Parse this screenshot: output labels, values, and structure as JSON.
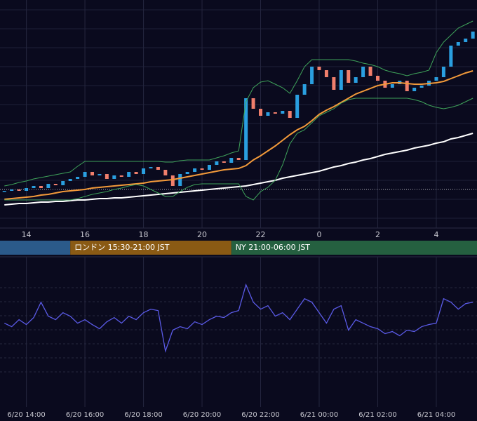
{
  "chart_data": {
    "type": "candlestick",
    "xlim": [
      13.1,
      29.39
    ],
    "xticks": [
      14,
      16,
      18,
      20,
      22,
      {
        "value": 24,
        "label": "0"
      },
      {
        "value": 26,
        "label": "2"
      },
      {
        "value": 28,
        "label": "4"
      }
    ],
    "bottom_xticks": [
      {
        "value": 14,
        "label": "6/20 14:00"
      },
      {
        "value": 16,
        "label": "6/20 16:00"
      },
      {
        "value": 18,
        "label": "6/20 18:00"
      },
      {
        "value": 20,
        "label": "6/20 20:00"
      },
      {
        "value": 22,
        "label": "6/20 22:00"
      },
      {
        "value": 24,
        "label": "6/21 00:00"
      },
      {
        "value": 26,
        "label": "6/21 02:00"
      },
      {
        "value": 28,
        "label": "6/21 04:00"
      }
    ],
    "ylim": [
      0,
      325
    ],
    "osc_ylim": [
      0,
      215
    ],
    "grid": true,
    "up_color": "#2a9fe0",
    "down_color": "#f07f6c",
    "price_line": 55,
    "x": [
      13.25,
      13.5,
      13.75,
      14,
      14.25,
      14.5,
      14.75,
      15,
      15.25,
      15.5,
      15.75,
      16,
      16.25,
      16.5,
      16.75,
      17,
      17.25,
      17.5,
      17.75,
      18,
      18.25,
      18.5,
      18.75,
      19,
      19.25,
      19.5,
      19.75,
      20,
      20.25,
      20.5,
      20.75,
      21,
      21.25,
      21.5,
      21.75,
      22,
      22.25,
      22.5,
      22.75,
      23,
      23.25,
      23.5,
      23.75,
      24,
      24.25,
      24.5,
      24.75,
      25,
      25.25,
      25.5,
      25.75,
      26,
      26.25,
      26.5,
      26.75,
      27,
      27.25,
      27.5,
      27.75,
      28,
      28.25,
      28.5,
      28.75,
      29,
      29.25
    ],
    "close": [
      53,
      55,
      53,
      57,
      60,
      57,
      63,
      61,
      67,
      70,
      73,
      80,
      75,
      77,
      70,
      75,
      73,
      80,
      77,
      85,
      87,
      83,
      75,
      60,
      77,
      80,
      85,
      83,
      90,
      95,
      93,
      100,
      97,
      185,
      170,
      160,
      165,
      163,
      167,
      157,
      190,
      205,
      230,
      225,
      215,
      197,
      225,
      207,
      215,
      230,
      217,
      210,
      200,
      205,
      210,
      195,
      200,
      203,
      210,
      215,
      230,
      260,
      265,
      270,
      280
    ],
    "lines": [
      {
        "color": "#f39a3a",
        "width": 2,
        "values": [
          41,
          42,
          43,
          44,
          45,
          47,
          48,
          50,
          52,
          53,
          54,
          55,
          57,
          58,
          59,
          60,
          61,
          62,
          63,
          64,
          66,
          67,
          68,
          69,
          71,
          73,
          75,
          77,
          79,
          81,
          83,
          84,
          85,
          89,
          97,
          103,
          110,
          117,
          125,
          133,
          140,
          145,
          153,
          162,
          168,
          173,
          179,
          185,
          191,
          195,
          199,
          203,
          205,
          207,
          207,
          206,
          205,
          205,
          206,
          207,
          209,
          213,
          217,
          221,
          224
        ]
      },
      {
        "color": "#ffffff",
        "width": 2,
        "values": [
          33,
          34,
          35,
          35,
          36,
          37,
          37,
          38,
          38,
          39,
          40,
          40,
          41,
          42,
          42,
          43,
          43,
          44,
          45,
          46,
          47,
          48,
          49,
          50,
          51,
          52,
          53,
          54,
          55,
          56,
          57,
          58,
          59,
          60,
          62,
          64,
          66,
          68,
          71,
          73,
          75,
          77,
          79,
          81,
          84,
          87,
          89,
          92,
          94,
          97,
          99,
          102,
          105,
          107,
          109,
          111,
          114,
          116,
          118,
          121,
          123,
          127,
          129,
          132,
          135
        ]
      },
      {
        "color": "#3fa35a",
        "width": 1,
        "values": [
          60,
          62,
          65,
          67,
          70,
          72,
          74,
          76,
          78,
          80,
          88,
          95,
          95,
          95,
          95,
          95,
          95,
          95,
          95,
          95,
          95,
          95,
          94,
          94,
          96,
          97,
          97,
          97,
          97,
          100,
          103,
          107,
          110,
          180,
          200,
          208,
          210,
          205,
          200,
          192,
          210,
          230,
          240,
          240,
          240,
          240,
          240,
          240,
          238,
          235,
          233,
          230,
          225,
          222,
          220,
          217,
          220,
          222,
          225,
          250,
          265,
          275,
          285,
          290,
          295
        ]
      },
      {
        "color": "#3fa35a",
        "width": 1,
        "values": [
          40,
          40,
          40,
          40,
          40,
          40,
          40,
          40,
          40,
          40,
          42,
          45,
          48,
          50,
          52,
          55,
          57,
          60,
          62,
          60,
          55,
          50,
          45,
          45,
          52,
          58,
          62,
          63,
          63,
          63,
          63,
          63,
          63,
          45,
          40,
          52,
          58,
          68,
          90,
          120,
          135,
          140,
          150,
          160,
          165,
          170,
          178,
          183,
          185,
          185,
          185,
          185,
          185,
          185,
          185,
          185,
          183,
          180,
          175,
          172,
          170,
          172,
          175,
          180,
          185
        ]
      }
    ],
    "oscillator": {
      "color": "#5a5ae6",
      "values": [
        120,
        115,
        125,
        118,
        128,
        150,
        130,
        125,
        135,
        130,
        120,
        125,
        118,
        112,
        122,
        128,
        120,
        130,
        125,
        135,
        140,
        138,
        80,
        110,
        115,
        112,
        122,
        118,
        125,
        130,
        128,
        135,
        138,
        175,
        150,
        140,
        145,
        130,
        135,
        125,
        140,
        155,
        150,
        135,
        120,
        140,
        145,
        110,
        125,
        120,
        115,
        112,
        105,
        108,
        102,
        110,
        108,
        115,
        118,
        120,
        155,
        150,
        140,
        148,
        150
      ]
    },
    "sessions": [
      {
        "label": null,
        "end": 15.5,
        "color": "#2b5a8a"
      },
      {
        "label": "ロンドン 15:30-21:00 JST",
        "start": 15.5,
        "end": 21,
        "color": "#8a5a14"
      },
      {
        "label": "NY 21:00-06:00 JST",
        "start": 21,
        "color": "#256040"
      }
    ]
  }
}
